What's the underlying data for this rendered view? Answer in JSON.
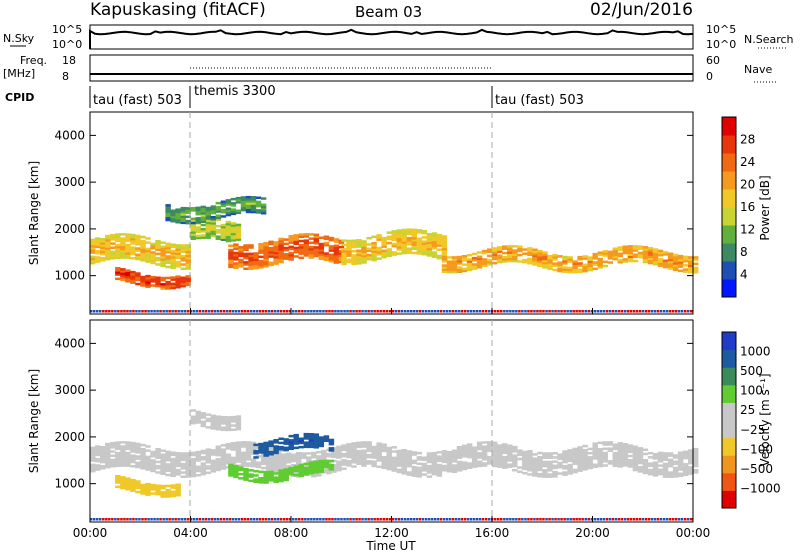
{
  "header": {
    "station": "Kapuskasing (fitACF)",
    "beam": "Beam 03",
    "date": "02/Jun/2016"
  },
  "top_panels": {
    "nsky_label": "N.Sky",
    "nsky_ticks": [
      "10^5",
      "10^0"
    ],
    "nsearch_label": "N.Search",
    "nsearch_ticks": [
      "10^5",
      "10^0"
    ],
    "freq_label": "Freq.",
    "freq_unit": "[MHz]",
    "freq_ticks": [
      "18",
      "8"
    ],
    "nave_label": "Nave",
    "nave_ticks": [
      "60",
      "0"
    ],
    "cpid_label": "CPID",
    "cpid_segments": [
      {
        "label": "tau (fast) 503"
      },
      {
        "label": "themis 3300"
      },
      {
        "label": "tau (fast) 503"
      }
    ]
  },
  "colors": {
    "power_scale": [
      "#0016ff",
      "#1e4fb4",
      "#3c8a63",
      "#5fb03c",
      "#c8d432",
      "#f0c828",
      "#f59a1e",
      "#f06a14",
      "#e8360c",
      "#e00000"
    ],
    "velocity_scale": [
      "#e00000",
      "#f05514",
      "#f0961e",
      "#f0c828",
      "#c8c8c8",
      "#c8c8c8",
      "#5fcc32",
      "#3c8a5a",
      "#1e5aa0",
      "#1e3cc8"
    ],
    "groundscatter": "#c8c8c8"
  },
  "chart_data": [
    {
      "type": "heatmap",
      "title": "",
      "ylabel": "Slant Range [km]",
      "xlabel": "",
      "ylim": [
        180,
        4500
      ],
      "yticks": [
        "4000",
        "3000",
        "2000",
        "1000"
      ],
      "colorbar": {
        "label": "Power [dB]",
        "ticks": [
          "28",
          "24",
          "20",
          "16",
          "12",
          "8",
          "4"
        ],
        "range": [
          0,
          30
        ]
      },
      "bands": [
        {
          "t_start": 0,
          "t_end": 4,
          "r_center": 1500,
          "r_width": 500,
          "value": 18
        },
        {
          "t_start": 1,
          "t_end": 4,
          "r_center": 950,
          "r_width": 250,
          "value": 26
        },
        {
          "t_start": 4,
          "t_end": 6,
          "r_center": 1900,
          "r_width": 450,
          "value": 14
        },
        {
          "t_start": 5.5,
          "t_end": 10,
          "r_center": 1500,
          "r_width": 500,
          "value": 24
        },
        {
          "t_start": 10,
          "t_end": 14,
          "r_center": 1600,
          "r_width": 500,
          "value": 18
        },
        {
          "t_start": 14,
          "t_end": 24,
          "r_center": 1350,
          "r_width": 350,
          "value": 20
        },
        {
          "t_start": 3,
          "t_end": 7,
          "r_center": 2400,
          "r_width": 350,
          "value": 10
        }
      ]
    },
    {
      "type": "heatmap",
      "title": "",
      "ylabel": "Slant Range [km]",
      "xlabel": "Time UT",
      "ylim": [
        180,
        4500
      ],
      "yticks": [
        "4000",
        "3000",
        "2000",
        "1000"
      ],
      "xticks": [
        "00:00",
        "04:00",
        "08:00",
        "12:00",
        "16:00",
        "20:00",
        "00:00"
      ],
      "colorbar": {
        "label": "Velocity [m s⁻¹]",
        "ticks": [
          "1000",
          "500",
          "100",
          "25",
          "−25",
          "−100",
          "−500",
          "−1000"
        ],
        "range": [
          -1000,
          1000
        ]
      },
      "bands": [
        {
          "t_start": 0,
          "t_end": 24,
          "r_center": 1500,
          "r_width": 500,
          "value": 0
        },
        {
          "t_start": 1,
          "t_end": 3.5,
          "r_center": 950,
          "r_width": 250,
          "value": -100
        },
        {
          "t_start": 5.5,
          "t_end": 9.5,
          "r_center": 1250,
          "r_width": 250,
          "value": 100
        },
        {
          "t_start": 6.5,
          "t_end": 9.5,
          "r_center": 1800,
          "r_width": 300,
          "value": 800
        },
        {
          "t_start": 4,
          "t_end": 6,
          "r_center": 2400,
          "r_width": 300,
          "value": 0
        }
      ]
    }
  ]
}
